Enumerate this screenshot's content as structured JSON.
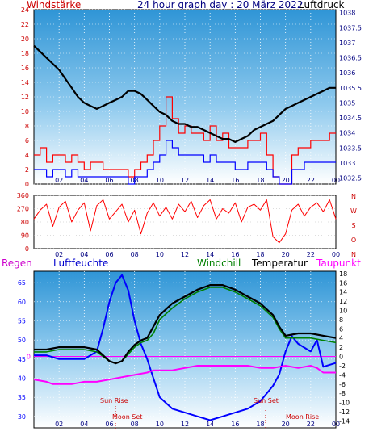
{
  "header": {
    "wind_label": "Windstärke",
    "title": "24 hour graph day : 20 März 2022",
    "pressure_label": "Luftdruck"
  },
  "legend": {
    "rain": "Regen",
    "humidity": "Luftfeuchte",
    "windchill": "Windchill",
    "temperature": "Temperatur",
    "dewpoint": "Taupunkt"
  },
  "annotations": {
    "sun_rise": "Sun Rise",
    "moon_set": "Moon Set",
    "sun_set": "Sun Set",
    "moon_rise": "Moon Rise"
  },
  "colors": {
    "wind": "#ff0000",
    "gust": "#0000ff",
    "pressure": "#000000",
    "direction": "#ff0000",
    "humidity": "#0000ff",
    "windchill": "#008000",
    "temperature": "#000000",
    "dewpoint": "#ff00ff",
    "rain": "#ff00ff",
    "axis_wind": "#cc0000",
    "axis_pressure": "#000080"
  },
  "chart_data": [
    {
      "type": "line",
      "id": "wind_pressure",
      "x_tick_labels": [
        "02",
        "04",
        "06",
        "08",
        "10",
        "12",
        "14",
        "16",
        "18",
        "20",
        "22",
        "00"
      ],
      "y_left_ticks": [
        "0",
        "2",
        "4",
        "6",
        "8",
        "10",
        "12",
        "14",
        "16",
        "18",
        "20",
        "22",
        "24"
      ],
      "y_right_ticks": [
        "1032.5",
        "1033",
        "1033.5",
        "1034",
        "1034.5",
        "1035",
        "1035.5",
        "1036",
        "1036.5",
        "1037",
        "1037.5",
        "1038"
      ],
      "ylim_left": [
        0,
        24
      ],
      "ylim_right": [
        1032.3,
        1038.1
      ],
      "xlim": [
        0,
        24
      ],
      "series": [
        {
          "name": "Luftdruck",
          "x": [
            0,
            0.5,
            1,
            1.5,
            2,
            2.5,
            3,
            3.5,
            4,
            4.5,
            5,
            5.5,
            6,
            6.5,
            7,
            7.5,
            8,
            8.5,
            9,
            9.5,
            10,
            10.5,
            11,
            11.5,
            12,
            12.5,
            13,
            13.5,
            14,
            14.5,
            15,
            15.5,
            16,
            16.5,
            17,
            17.5,
            18,
            18.5,
            19,
            19.5,
            20,
            20.5,
            21,
            21.5,
            22,
            22.5,
            23,
            23.5,
            24
          ],
          "values": [
            1036.9,
            1036.7,
            1036.5,
            1036.3,
            1036.1,
            1035.8,
            1035.5,
            1035.2,
            1035.0,
            1034.9,
            1034.8,
            1034.9,
            1035.0,
            1035.1,
            1035.2,
            1035.4,
            1035.4,
            1035.3,
            1035.1,
            1034.9,
            1034.7,
            1034.6,
            1034.4,
            1034.3,
            1034.3,
            1034.2,
            1034.2,
            1034.1,
            1034.0,
            1033.9,
            1033.8,
            1033.8,
            1033.7,
            1033.8,
            1033.9,
            1034.1,
            1034.2,
            1034.3,
            1034.4,
            1034.6,
            1034.8,
            1034.9,
            1035.0,
            1035.1,
            1035.2,
            1035.3,
            1035.4,
            1035.5,
            1035.5
          ]
        },
        {
          "name": "Wind",
          "x": [
            0,
            0.5,
            1,
            1.5,
            2,
            2.5,
            3,
            3.5,
            4,
            4.5,
            5,
            5.5,
            6,
            6.5,
            7,
            7.5,
            8,
            8.5,
            9,
            9.5,
            10,
            10.5,
            11,
            11.5,
            12,
            12.5,
            13,
            13.5,
            14,
            14.5,
            15,
            15.5,
            16,
            16.5,
            17,
            17.5,
            18,
            18.5,
            19,
            19.5,
            20,
            20.5,
            21,
            21.5,
            22,
            22.5,
            23,
            23.5,
            24
          ],
          "values": [
            4,
            5,
            3,
            4,
            4,
            3,
            4,
            3,
            2,
            3,
            3,
            2,
            2,
            2,
            2,
            1,
            2,
            3,
            4,
            6,
            8,
            12,
            9,
            7,
            8,
            7,
            7,
            6,
            8,
            6,
            7,
            5,
            5,
            5,
            6,
            6,
            7,
            4,
            1,
            0,
            0,
            4,
            5,
            5,
            6,
            6,
            6,
            7,
            7
          ]
        },
        {
          "name": "Böen",
          "x": [
            0,
            0.5,
            1,
            1.5,
            2,
            2.5,
            3,
            3.5,
            4,
            4.5,
            5,
            5.5,
            6,
            6.5,
            7,
            7.5,
            8,
            8.5,
            9,
            9.5,
            10,
            10.5,
            11,
            11.5,
            12,
            12.5,
            13,
            13.5,
            14,
            14.5,
            15,
            15.5,
            16,
            16.5,
            17,
            17.5,
            18,
            18.5,
            19,
            19.5,
            20,
            20.5,
            21,
            21.5,
            22,
            22.5,
            23,
            23.5,
            24
          ],
          "values": [
            2,
            2,
            1,
            2,
            2,
            1,
            2,
            1,
            1,
            1,
            1,
            1,
            1,
            1,
            1,
            0,
            1,
            1,
            2,
            3,
            4,
            6,
            5,
            4,
            4,
            4,
            4,
            3,
            4,
            3,
            3,
            3,
            2,
            2,
            3,
            3,
            3,
            2,
            1,
            0,
            0,
            2,
            2,
            3,
            3,
            3,
            3,
            3,
            3
          ]
        }
      ]
    },
    {
      "type": "line",
      "id": "wind_direction",
      "x_tick_labels": [
        "02",
        "04",
        "06",
        "08",
        "10",
        "12",
        "14",
        "16",
        "18",
        "20",
        "22",
        "00"
      ],
      "y_ticks": [
        "0",
        "90",
        "180",
        "270",
        "360"
      ],
      "direction_labels": [
        "N",
        "W",
        "S",
        "O",
        "N"
      ],
      "ylim": [
        0,
        360
      ],
      "xlim": [
        0,
        24
      ],
      "series": [
        {
          "name": "Windrichtung",
          "x": [
            0,
            0.5,
            1,
            1.5,
            2,
            2.5,
            3,
            3.5,
            4,
            4.5,
            5,
            5.5,
            6,
            6.5,
            7,
            7.5,
            8,
            8.5,
            9,
            9.5,
            10,
            10.5,
            11,
            11.5,
            12,
            12.5,
            13,
            13.5,
            14,
            14.5,
            15,
            15.5,
            16,
            16.5,
            17,
            17.5,
            18,
            18.5,
            19,
            19.5,
            20,
            20.5,
            21,
            21.5,
            22,
            22.5,
            23,
            23.5,
            24
          ],
          "values": [
            200,
            260,
            300,
            150,
            280,
            320,
            180,
            260,
            310,
            120,
            290,
            330,
            200,
            250,
            300,
            180,
            260,
            100,
            240,
            310,
            220,
            280,
            200,
            300,
            250,
            320,
            210,
            290,
            330,
            200,
            270,
            240,
            310,
            180,
            280,
            300,
            260,
            330,
            80,
            40,
            100,
            260,
            300,
            220,
            280,
            310,
            250,
            330,
            200
          ]
        }
      ]
    },
    {
      "type": "line",
      "id": "temp_humidity",
      "x_tick_labels": [
        "02",
        "04",
        "06",
        "08",
        "10",
        "12",
        "14",
        "16",
        "18",
        "20",
        "22",
        "00"
      ],
      "y_left_ticks": [
        "30",
        "35",
        "40",
        "45",
        "50",
        "55",
        "60",
        "65"
      ],
      "y_right_ticks": [
        "-14",
        "-12",
        "-10",
        "-8",
        "-6",
        "-4",
        "-2",
        "0",
        "2",
        "4",
        "6",
        "8",
        "10",
        "12",
        "14",
        "16",
        "18"
      ],
      "rain_axis_label": "0",
      "ylim_left": [
        27,
        68
      ],
      "ylim_right": [
        -15.5,
        18.5
      ],
      "xlim": [
        0,
        24
      ],
      "series": [
        {
          "name": "Temperatur",
          "x": [
            0,
            1,
            2,
            3,
            4,
            5,
            6,
            6.5,
            7,
            7.5,
            8,
            8.5,
            9,
            9.5,
            10,
            11,
            12,
            13,
            14,
            15,
            16,
            17,
            18,
            19,
            19.5,
            20,
            21,
            22,
            23,
            24
          ],
          "values": [
            1.5,
            1.5,
            2,
            2,
            2,
            1.5,
            -1,
            -1.5,
            -1,
            1,
            2.5,
            3.5,
            4,
            6.5,
            9,
            11.5,
            13,
            14.5,
            15.5,
            15.5,
            14.5,
            13,
            11.5,
            9,
            6.5,
            4.5,
            5,
            5,
            4.5,
            4
          ]
        },
        {
          "name": "Windchill",
          "x": [
            0,
            1,
            2,
            3,
            4,
            5,
            6,
            6.5,
            7,
            7.5,
            8,
            8.5,
            9,
            9.5,
            10,
            11,
            12,
            13,
            14,
            15,
            16,
            17,
            18,
            19,
            19.5,
            20,
            21,
            22,
            23,
            24
          ],
          "values": [
            1,
            1,
            1.5,
            1.5,
            1.5,
            1,
            -1,
            -1.5,
            -1,
            0.5,
            2,
            3,
            3.5,
            5,
            8,
            10.5,
            12.5,
            14,
            15,
            15,
            14,
            12.5,
            11,
            8.5,
            6,
            4,
            4,
            4,
            3.5,
            3
          ]
        },
        {
          "name": "Taupunkt",
          "x": [
            0,
            1,
            1.5,
            2,
            3,
            4,
            5,
            6,
            7,
            8,
            9,
            9.5,
            10,
            11,
            12,
            13,
            14,
            15,
            16,
            17,
            18,
            19,
            20,
            21,
            22,
            22.5,
            23,
            24
          ],
          "values": [
            -5,
            -5.5,
            -6,
            -6,
            -6,
            -5.5,
            -5.5,
            -5,
            -4.5,
            -4,
            -3.5,
            -3,
            -3,
            -3,
            -2.5,
            -2,
            -2,
            -2,
            -2,
            -2,
            -2.5,
            -2.5,
            -2,
            -2.5,
            -2,
            -2.5,
            -3.5,
            -3.5
          ]
        },
        {
          "name": "Luftfeuchte",
          "x": [
            0,
            1,
            2,
            3,
            4,
            5,
            5.5,
            6,
            6.5,
            7,
            7.5,
            8,
            8.5,
            9,
            9.5,
            10,
            11,
            12,
            13,
            14,
            15,
            16,
            17,
            18,
            19,
            19.5,
            20,
            20.5,
            21,
            22,
            22.5,
            23,
            24
          ],
          "values": [
            46,
            46,
            45,
            45,
            45,
            47,
            53,
            60,
            65,
            67,
            63,
            55,
            49,
            45,
            40,
            35,
            32,
            31,
            30,
            29,
            30,
            31,
            32,
            34,
            38,
            41,
            47,
            51,
            49,
            47,
            50,
            43,
            44
          ]
        }
      ]
    }
  ]
}
